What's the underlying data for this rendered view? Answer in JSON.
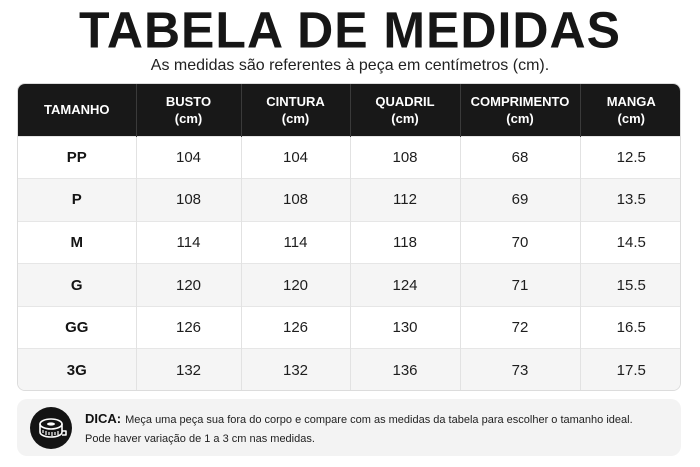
{
  "header": {
    "title": "TABELA DE MEDIDAS",
    "subtitle": "As medidas são referentes à peça em centímetros (cm)."
  },
  "table": {
    "columns": [
      {
        "label": "TAMANHO",
        "unit": ""
      },
      {
        "label": "BUSTO",
        "unit": "(cm)"
      },
      {
        "label": "CINTURA",
        "unit": "(cm)"
      },
      {
        "label": "QUADRIL",
        "unit": "(cm)"
      },
      {
        "label": "COMPRIMENTO",
        "unit": "(cm)"
      },
      {
        "label": "MANGA",
        "unit": "(cm)"
      }
    ],
    "rows": [
      [
        "PP",
        "104",
        "104",
        "108",
        "68",
        "12.5"
      ],
      [
        "P",
        "108",
        "108",
        "112",
        "69",
        "13.5"
      ],
      [
        "M",
        "114",
        "114",
        "118",
        "70",
        "14.5"
      ],
      [
        "G",
        "120",
        "120",
        "124",
        "71",
        "15.5"
      ],
      [
        "GG",
        "126",
        "126",
        "130",
        "72",
        "16.5"
      ],
      [
        "3G",
        "132",
        "132",
        "136",
        "73",
        "17.5"
      ]
    ]
  },
  "tip": {
    "label": "DICA:",
    "line1": "Meça uma peça sua fora do corpo e compare com as medidas da tabela para escolher o tamanho ideal.",
    "line2": "Pode haver variação de 1 a 3 cm nas medidas.",
    "icon": "measuring-tape-icon"
  },
  "colors": {
    "header_bg": "#181818",
    "header_text": "#ffffff",
    "row_alt_bg": "#f5f5f5"
  }
}
